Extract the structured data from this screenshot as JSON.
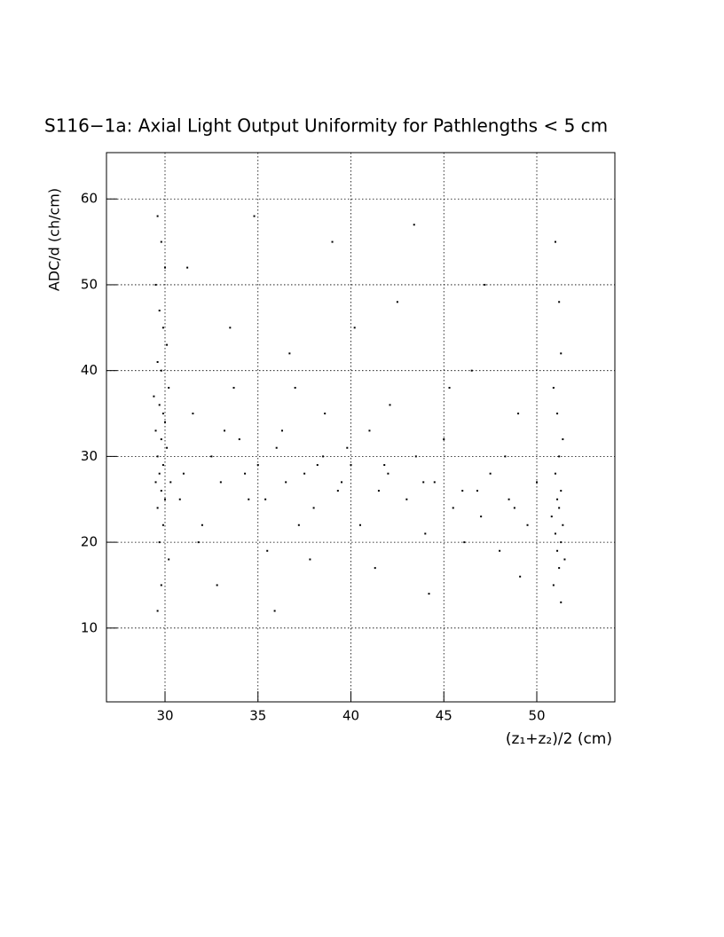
{
  "chart_data": {
    "type": "scatter",
    "title": "S116−1a: Axial Light Output Uniformity for Pathlengths < 5 cm",
    "xlabel": "(z₁+z₂)/2 (cm)",
    "ylabel": "ADC/d (ch/cm)",
    "xlim": [
      26.85,
      54.2
    ],
    "ylim": [
      1.4,
      65.4
    ],
    "xticks": [
      30,
      35,
      40,
      45,
      50
    ],
    "yticks": [
      10,
      20,
      30,
      40,
      50,
      60
    ],
    "grid": true,
    "color": "#000000",
    "x": [
      29.6,
      29.8,
      30.0,
      29.5,
      29.7,
      29.9,
      30.1,
      29.6,
      29.8,
      30.2,
      29.4,
      29.7,
      29.9,
      30.0,
      29.5,
      29.8,
      30.1,
      29.6,
      29.9,
      29.7,
      30.3,
      29.5,
      29.8,
      30.0,
      29.6,
      29.9,
      29.7,
      30.2,
      29.8,
      29.6,
      51.0,
      51.2,
      51.3,
      50.9,
      51.1,
      51.4,
      51.2,
      51.0,
      51.3,
      51.1,
      51.2,
      50.8,
      51.4,
      51.0,
      51.3,
      51.1,
      51.5,
      51.2,
      50.9,
      51.3,
      31,
      31.5,
      32,
      32.5,
      33,
      33.5,
      34,
      34.5,
      35,
      35.5,
      36,
      36.5,
      37,
      37.5,
      38,
      38.5,
      39,
      39.5,
      40,
      40.5,
      41,
      41.5,
      42,
      42.5,
      43,
      43.5,
      44,
      44.5,
      45,
      45.5,
      46,
      46.5,
      47,
      47.5,
      48,
      48.5,
      49,
      49.5,
      50,
      31.2,
      32.8,
      33.7,
      34.8,
      35.9,
      36.7,
      37.8,
      38.6,
      39.3,
      40.2,
      41.3,
      42.1,
      43.4,
      44.2,
      45.3,
      46.1,
      47.2,
      48.3,
      49.1,
      30.8,
      31.8,
      33.2,
      34.3,
      35.4,
      36.3,
      37.2,
      38.2,
      39.8,
      41.8,
      43.9,
      46.8,
      48.8
    ],
    "y": [
      58,
      55,
      52,
      50,
      47,
      45,
      43,
      41,
      40,
      38,
      37,
      36,
      35,
      34,
      33,
      32,
      31,
      30,
      29,
      28,
      27,
      27,
      26,
      25,
      24,
      22,
      20,
      18,
      15,
      12,
      55,
      48,
      42,
      38,
      35,
      32,
      30,
      28,
      26,
      25,
      24,
      23,
      22,
      21,
      20,
      19,
      18,
      17,
      15,
      13,
      28,
      35,
      22,
      30,
      27,
      45,
      32,
      25,
      29,
      19,
      31,
      27,
      38,
      28,
      24,
      30,
      55,
      27,
      29,
      22,
      33,
      26,
      28,
      48,
      25,
      30,
      21,
      27,
      32,
      24,
      26,
      40,
      23,
      28,
      19,
      25,
      35,
      22,
      27,
      52,
      15,
      38,
      58,
      12,
      42,
      18,
      35,
      26,
      45,
      17,
      36,
      57,
      14,
      38,
      20,
      50,
      30,
      16,
      25,
      20,
      33,
      28,
      25,
      33,
      22,
      29,
      31,
      29,
      27,
      26,
      24
    ]
  }
}
